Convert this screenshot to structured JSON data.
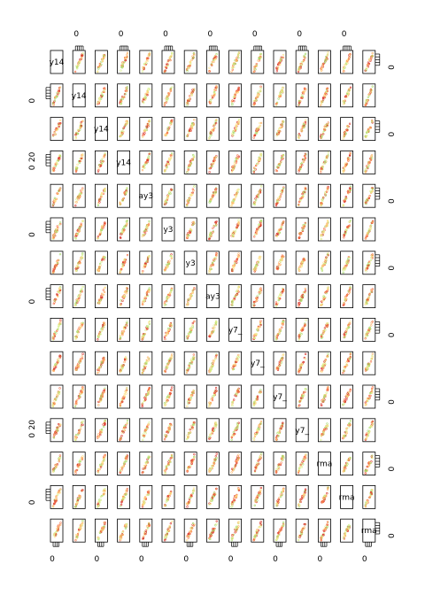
{
  "chart_data": {
    "type": "scatter",
    "layout": "pairs-matrix",
    "rows": 15,
    "cols": 15,
    "diagonal_labels": [
      "y14",
      "y14",
      "y14",
      "y14",
      "ay3",
      "y3",
      "y3",
      "ay3",
      "y7_",
      "y7_",
      "y7_",
      "y7_",
      "rma",
      "rma",
      "rma"
    ],
    "tick_labels": {
      "top": [
        {
          "col": 1,
          "labels": [
            "0"
          ]
        },
        {
          "col": 3,
          "labels": [
            "0"
          ]
        },
        {
          "col": 5,
          "labels": [
            "0"
          ]
        },
        {
          "col": 7,
          "labels": [
            "0"
          ]
        },
        {
          "col": 9,
          "labels": [
            "0"
          ]
        },
        {
          "col": 11,
          "labels": [
            "0"
          ]
        },
        {
          "col": 13,
          "labels": [
            "0"
          ]
        }
      ],
      "bottom": [
        {
          "col": 0,
          "labels": [
            "0"
          ]
        },
        {
          "col": 2,
          "labels": [
            "0"
          ]
        },
        {
          "col": 4,
          "labels": [
            "0"
          ]
        },
        {
          "col": 6,
          "labels": [
            "0"
          ]
        },
        {
          "col": 8,
          "labels": [
            "0"
          ]
        },
        {
          "col": 10,
          "labels": [
            "0"
          ]
        },
        {
          "col": 12,
          "labels": [
            "0"
          ]
        },
        {
          "col": 14,
          "labels": [
            "0"
          ]
        }
      ],
      "left": [
        {
          "row": 1,
          "labels": [
            "0"
          ]
        },
        {
          "row": 3,
          "labels": [
            "0",
            "20"
          ]
        },
        {
          "row": 5,
          "labels": [
            "0"
          ]
        },
        {
          "row": 7,
          "labels": [
            "0"
          ]
        },
        {
          "row": 11,
          "labels": [
            "0",
            "20"
          ]
        },
        {
          "row": 13,
          "labels": [
            "0"
          ]
        }
      ],
      "right": [
        {
          "row": 0,
          "labels": [
            "0"
          ]
        },
        {
          "row": 2,
          "labels": [
            "0"
          ]
        },
        {
          "row": 4,
          "labels": [
            "0"
          ]
        },
        {
          "row": 6,
          "labels": [
            "0"
          ]
        },
        {
          "row": 8,
          "labels": [
            "0"
          ]
        },
        {
          "row": 10,
          "labels": [
            "0"
          ]
        },
        {
          "row": 12,
          "labels": [
            "0"
          ]
        },
        {
          "row": 14,
          "labels": [
            "0"
          ]
        }
      ]
    },
    "point_colors": [
      "#d73027",
      "#f46d43",
      "#fdae61",
      "#fee08b",
      "#d9ef8b",
      "#a6d96a"
    ],
    "xlabel": "",
    "ylabel": "",
    "grid": false,
    "legend": "none"
  }
}
